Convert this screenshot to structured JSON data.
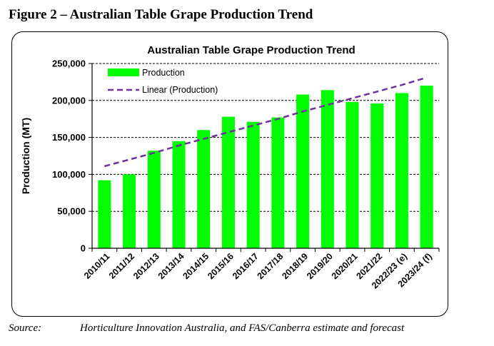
{
  "figure": {
    "caption": "Figure 2 – Australian Table Grape Production Trend"
  },
  "source": {
    "label": "Source:",
    "text": "Horticulture Innovation Australia, and FAS/Canberra estimate and forecast"
  },
  "chart_data": {
    "type": "bar",
    "title": "Australian Table Grape Production Trend",
    "xlabel": "",
    "ylabel": "Production (MT)",
    "ylim": [
      0,
      250000
    ],
    "yticks": [
      0,
      50000,
      100000,
      150000,
      200000,
      250000
    ],
    "ytick_labels": [
      "0",
      "50,000",
      "100,000",
      "150,000",
      "200,000",
      "250,000"
    ],
    "grid": true,
    "legend_position": "top-left",
    "categories": [
      "2010/11",
      "2011/12",
      "2012/13",
      "2013/14",
      "2014/15",
      "2015/16",
      "2016/17",
      "2017/18",
      "2018/19",
      "2019/20",
      "2020/21",
      "2021/22",
      "2022/23 (e)",
      "2023/24 (f)"
    ],
    "series": [
      {
        "name": "Production",
        "kind": "bar",
        "color": "#00ff00",
        "values": [
          92000,
          100000,
          132000,
          145000,
          160000,
          178000,
          171000,
          177000,
          208000,
          214000,
          198000,
          196000,
          210000,
          220000
        ]
      },
      {
        "name": "Linear (Production)",
        "kind": "trendline",
        "color": "#7030a0",
        "values": [
          111000,
          120000,
          129000,
          139000,
          148000,
          157000,
          166000,
          175000,
          185000,
          194000,
          203000,
          212000,
          221000,
          231000
        ]
      }
    ]
  }
}
